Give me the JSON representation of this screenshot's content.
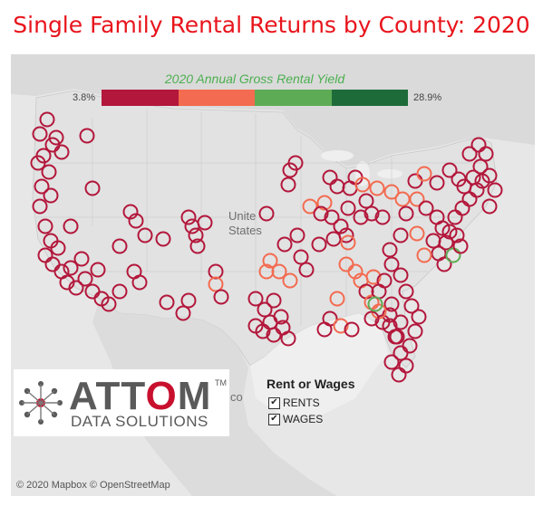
{
  "title": "Single Family Rental Returns by County: 2020",
  "legend": {
    "title": "2020 Annual Gross Rental Yield",
    "min_label": "3.8%",
    "max_label": "28.9%",
    "colors": [
      "#b3173b",
      "#f36b50",
      "#5eab55",
      "#1e6b3a"
    ]
  },
  "map_labels": {
    "country": "Unite",
    "country2": "States",
    "partial": "co"
  },
  "logo": {
    "word": "ATTOM",
    "tm": "TM",
    "sub": "DATA SOLUTIONS"
  },
  "toggle": {
    "title": "Rent or Wages",
    "rents_label": "RENTS",
    "wages_label": "WAGES",
    "rents_checked": true,
    "wages_checked": true
  },
  "attribution": "© 2020 Mapbox © OpenStreetMap"
}
